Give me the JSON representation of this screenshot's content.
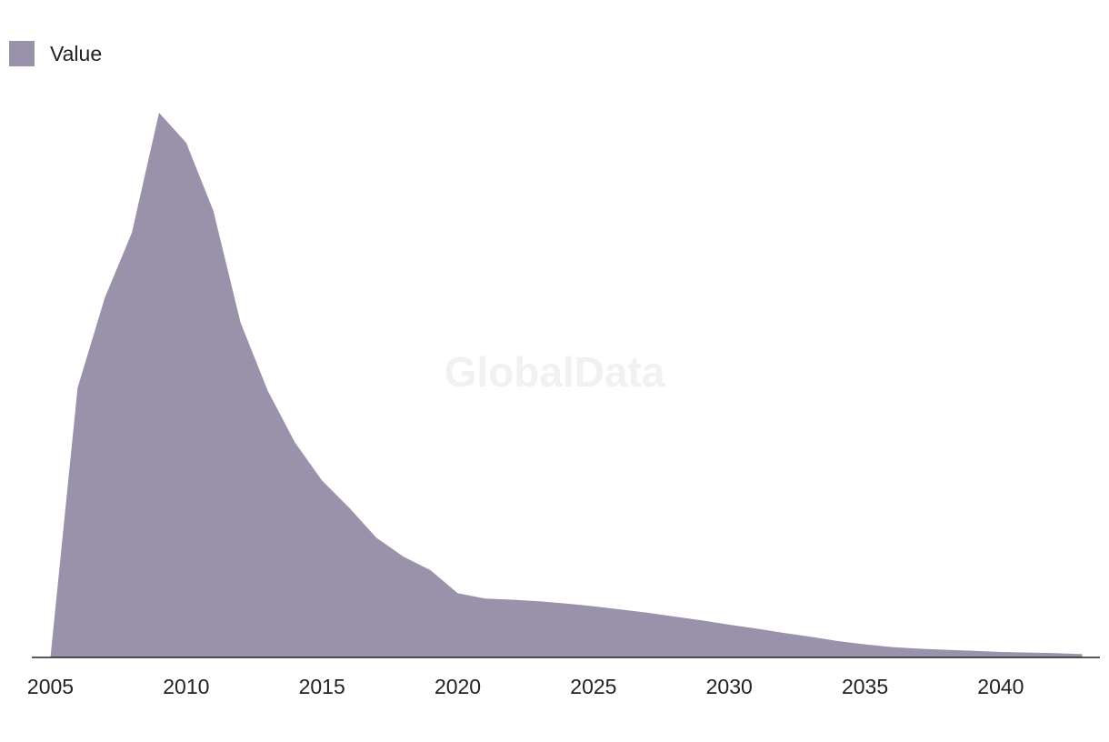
{
  "chart_data": {
    "type": "area",
    "title": "",
    "xlabel": "",
    "ylabel": "",
    "legend": {
      "label": "Value",
      "placement": "top-left"
    },
    "watermark": "GlobalData",
    "xlim": [
      2005,
      2043
    ],
    "ylim": [
      0,
      100
    ],
    "x_ticks": [
      2005,
      2010,
      2015,
      2020,
      2025,
      2030,
      2035,
      2040
    ],
    "series": [
      {
        "name": "Value",
        "color": "#9a91aa",
        "x": [
          2005,
          2006,
          2007,
          2008,
          2009,
          2010,
          2011,
          2012,
          2013,
          2014,
          2015,
          2016,
          2017,
          2018,
          2019,
          2020,
          2021,
          2022,
          2023,
          2024,
          2025,
          2026,
          2027,
          2028,
          2029,
          2030,
          2031,
          2032,
          2033,
          2034,
          2035,
          2036,
          2037,
          2038,
          2039,
          2040,
          2041,
          2042,
          2043
        ],
        "values": [
          0,
          49.5,
          66,
          78,
          100,
          94.5,
          82,
          61.5,
          49,
          39.5,
          32.5,
          27.5,
          22,
          18.5,
          16,
          11.8,
          10.8,
          10.6,
          10.3,
          9.9,
          9.4,
          8.8,
          8.2,
          7.5,
          6.8,
          6.0,
          5.3,
          4.5,
          3.8,
          3.0,
          2.4,
          1.9,
          1.6,
          1.4,
          1.2,
          1.0,
          0.9,
          0.8,
          0.6
        ]
      }
    ]
  }
}
